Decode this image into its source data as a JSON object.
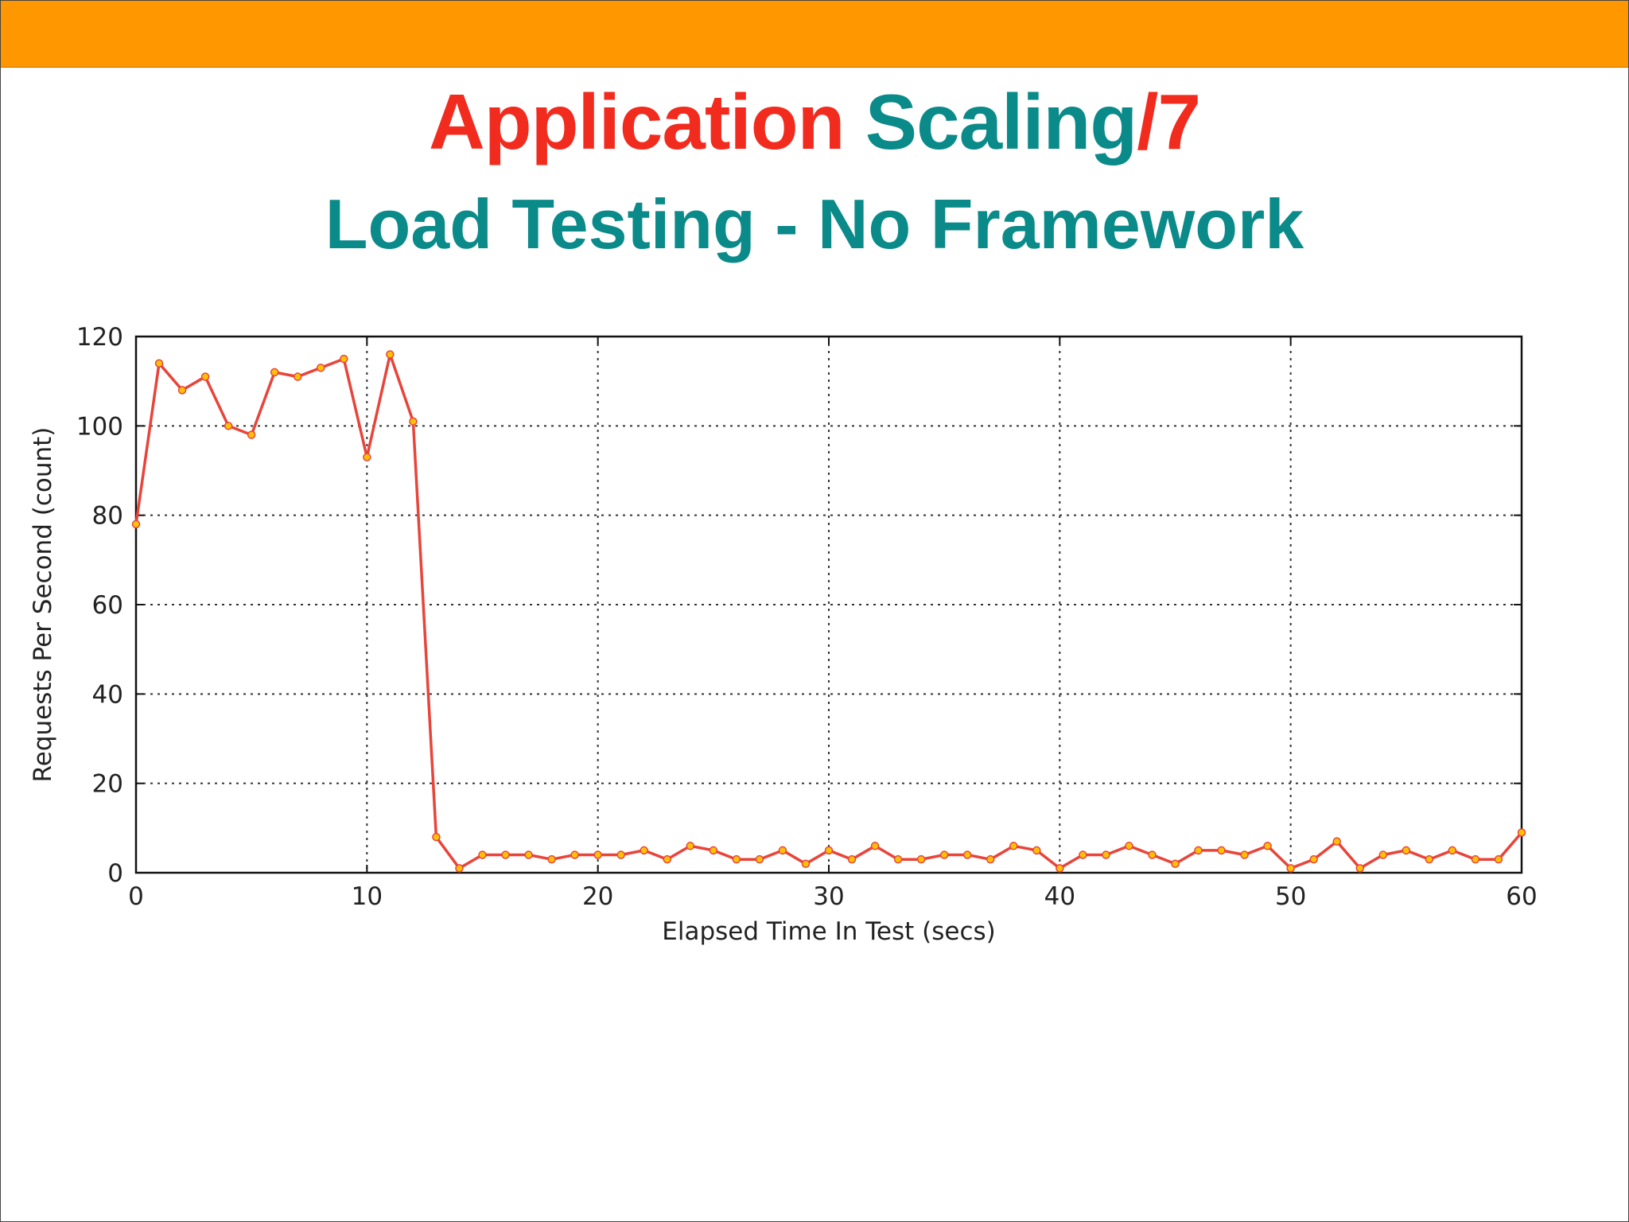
{
  "slide": {
    "title_part1": "Application",
    "title_part2": "Scaling",
    "title_part3": "/7",
    "subtitle": "Load Testing - No Framework"
  },
  "colors": {
    "top_bar": "#ff9800",
    "title_red": "#f22b1f",
    "title_teal": "#0b8a8a",
    "line": "#e8443a",
    "marker_fill": "#ffc107",
    "grid": "#333333",
    "axis_text": "#222222"
  },
  "chart_data": {
    "type": "line",
    "xlabel": "Elapsed Time In Test (secs)",
    "ylabel": "Requests Per Second (count)",
    "xlim": [
      0,
      60
    ],
    "ylim": [
      0,
      120
    ],
    "xticks": [
      0,
      10,
      20,
      30,
      40,
      50,
      60
    ],
    "yticks": [
      0,
      20,
      40,
      60,
      80,
      100,
      120
    ],
    "grid": true,
    "series": [
      {
        "x": [
          0,
          1,
          2,
          3,
          4,
          5,
          6,
          7,
          8,
          9,
          10,
          11,
          12,
          13,
          14,
          15,
          16,
          17,
          18,
          19,
          20,
          21,
          22,
          23,
          24,
          25,
          26,
          27,
          28,
          29,
          30,
          31,
          32,
          33,
          34,
          35,
          36,
          37,
          38,
          39,
          40,
          41,
          42,
          43,
          44,
          45,
          46,
          47,
          48,
          49,
          50,
          51,
          52,
          53,
          54,
          55,
          56,
          57,
          58,
          59,
          60
        ],
        "values": [
          78,
          114,
          108,
          111,
          100,
          98,
          112,
          111,
          113,
          115,
          93,
          116,
          101,
          8,
          1,
          4,
          4,
          4,
          3,
          4,
          4,
          4,
          5,
          3,
          6,
          5,
          3,
          3,
          5,
          2,
          5,
          3,
          6,
          3,
          3,
          4,
          4,
          3,
          6,
          5,
          1,
          4,
          4,
          6,
          4,
          2,
          5,
          5,
          4,
          6,
          1,
          3,
          7,
          1,
          4,
          5,
          3,
          5,
          3,
          3,
          9
        ]
      }
    ]
  }
}
